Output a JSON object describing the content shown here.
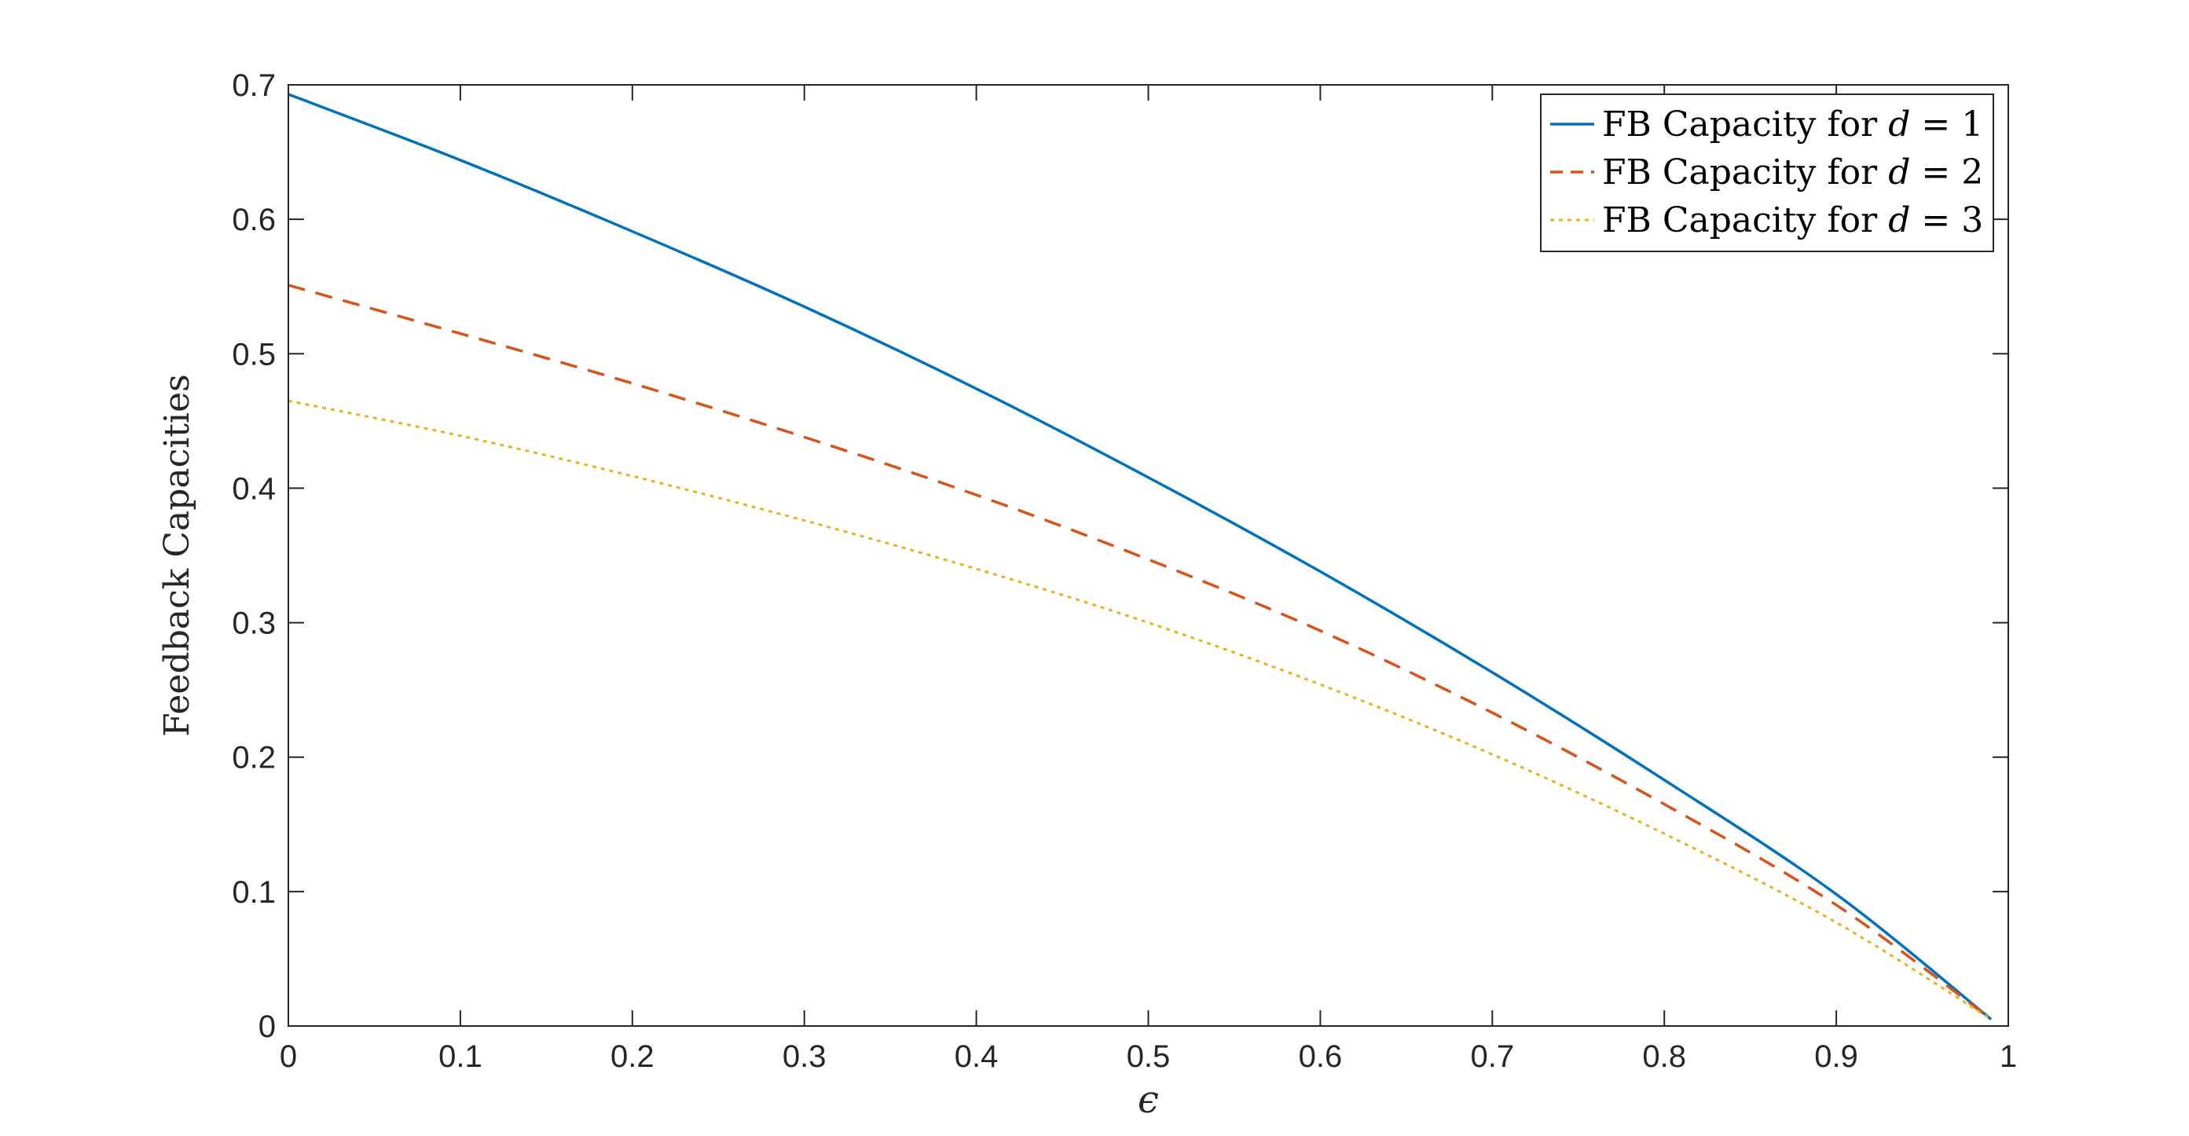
{
  "chart_data": {
    "type": "line",
    "xlabel": "ϵ",
    "ylabel": "Feedback Capacities",
    "xlim": [
      0,
      1
    ],
    "ylim": [
      0,
      0.7
    ],
    "x_ticks": [
      "0",
      "0.1",
      "0.2",
      "0.3",
      "0.4",
      "0.5",
      "0.6",
      "0.7",
      "0.8",
      "0.9",
      "1"
    ],
    "y_ticks": [
      "0",
      "0.1",
      "0.2",
      "0.3",
      "0.4",
      "0.5",
      "0.6",
      "0.7"
    ],
    "grid": false,
    "box": true,
    "legend_position": "top-right",
    "x": [
      0,
      0.1,
      0.2,
      0.3,
      0.4,
      0.5,
      0.6,
      0.7,
      0.8,
      0.9,
      0.99
    ],
    "series": [
      {
        "name": "FB Capacity for d = 1",
        "name_parts": {
          "prefix": "FB Capacity for ",
          "var": "d",
          "rel": " = ",
          "value": "1"
        },
        "style": "solid",
        "color": "#0072BD",
        "values": [
          0.693,
          0.644,
          0.591,
          0.535,
          0.474,
          0.408,
          0.338,
          0.263,
          0.183,
          0.098,
          0.005
        ]
      },
      {
        "name": "FB Capacity for d = 2",
        "name_parts": {
          "prefix": "FB Capacity for ",
          "var": "d",
          "rel": " = ",
          "value": "2"
        },
        "style": "dashed",
        "color": "#D95319",
        "values": [
          0.551,
          0.515,
          0.478,
          0.438,
          0.395,
          0.347,
          0.294,
          0.233,
          0.165,
          0.09,
          0.005
        ]
      },
      {
        "name": "FB Capacity for d = 3",
        "name_parts": {
          "prefix": "FB Capacity for ",
          "var": "d",
          "rel": " = ",
          "value": "3"
        },
        "style": "dotted",
        "color": "#EDB120",
        "values": [
          0.465,
          0.439,
          0.409,
          0.376,
          0.34,
          0.3,
          0.254,
          0.202,
          0.143,
          0.077,
          0.005
        ]
      }
    ]
  }
}
